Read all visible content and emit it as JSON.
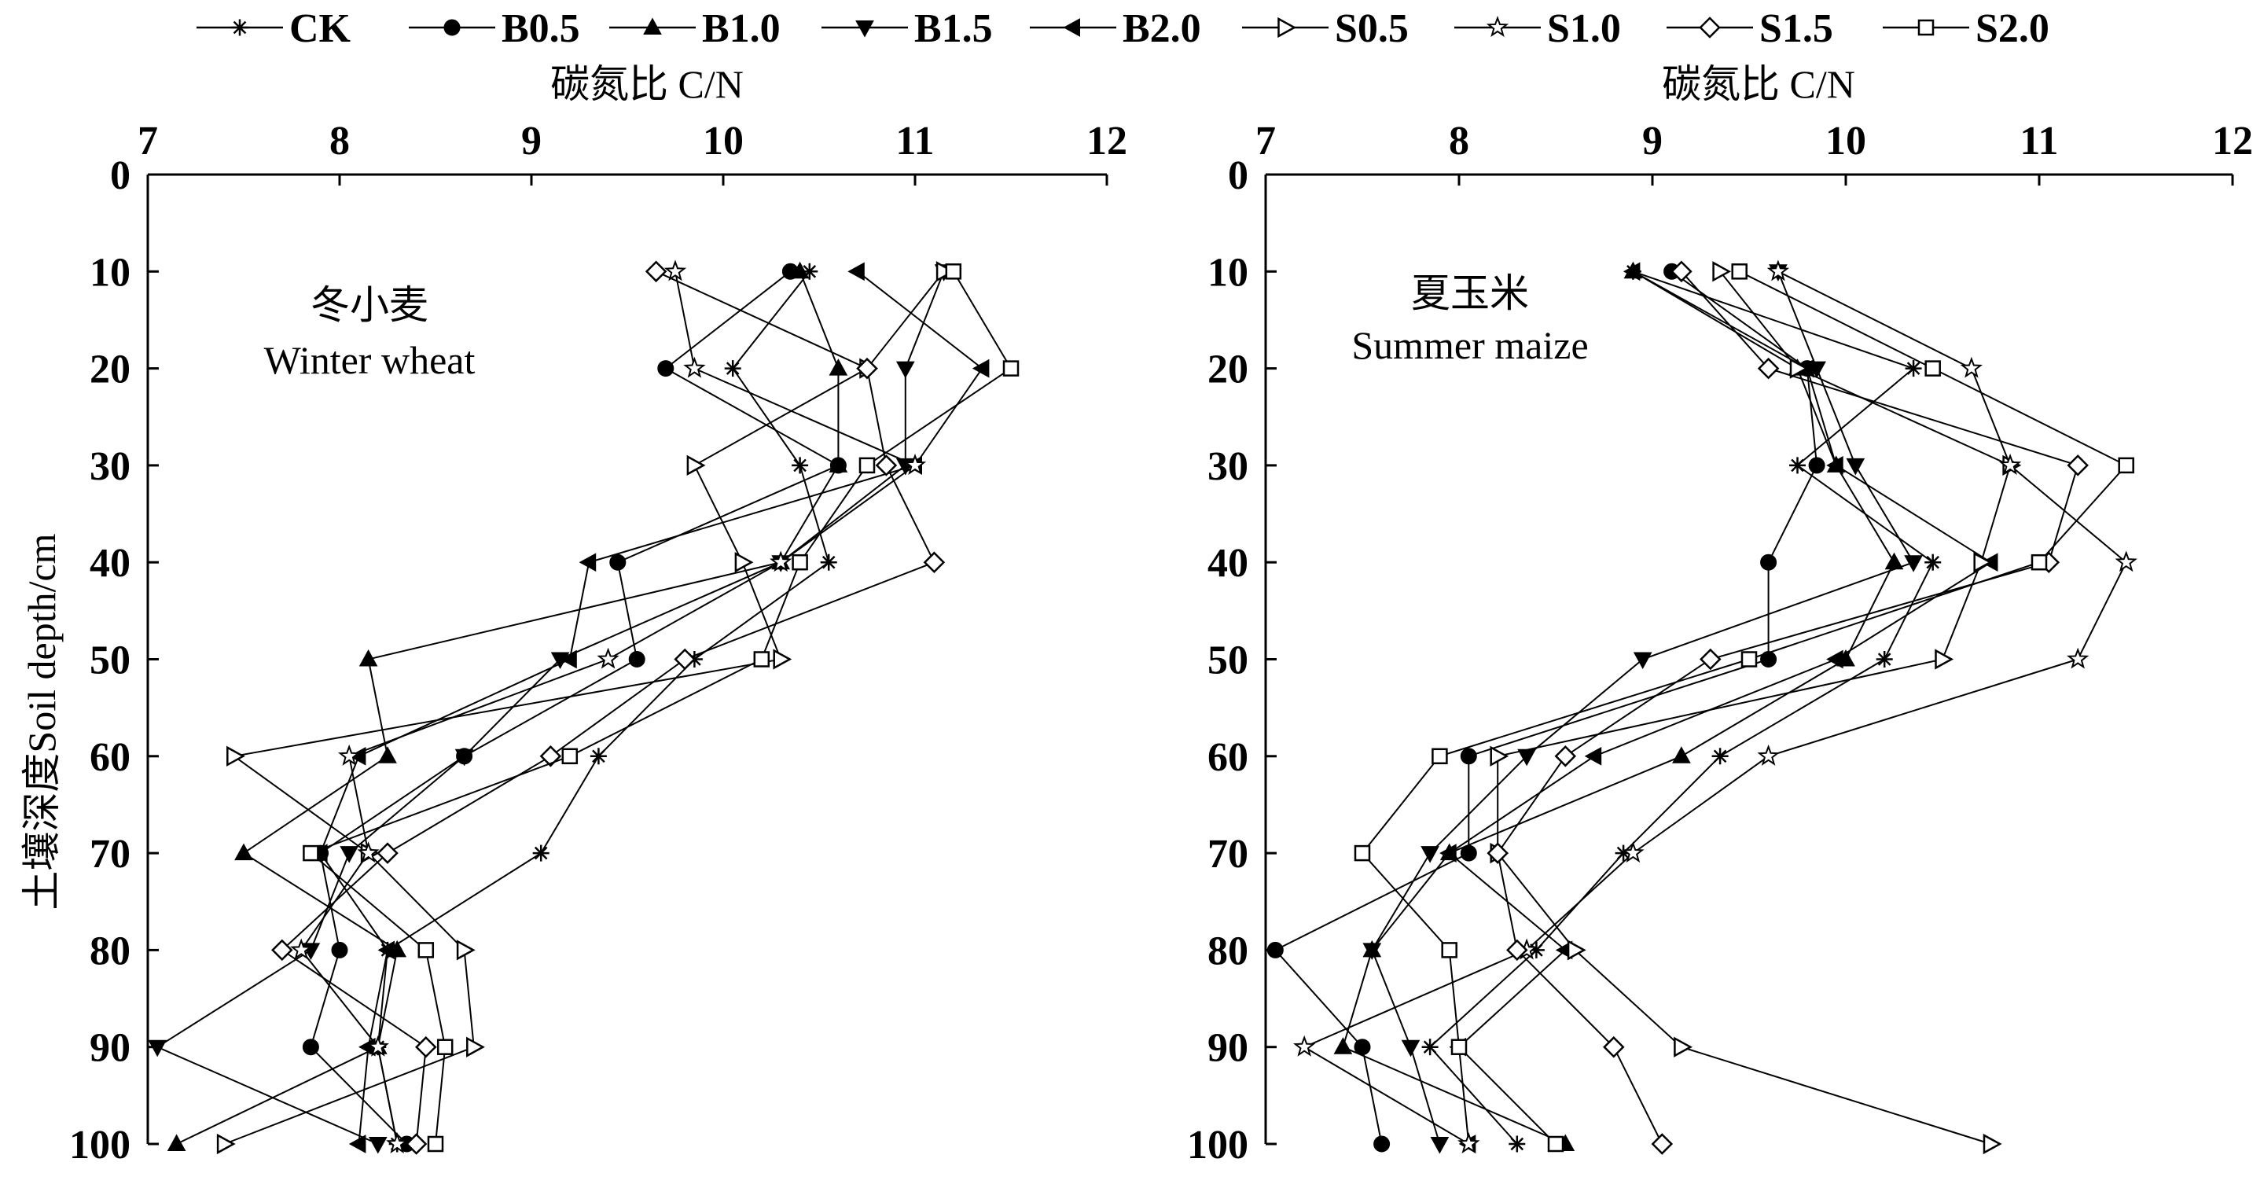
{
  "legend": {
    "position": "top",
    "series_names": [
      "CK",
      "B0.5",
      "B1.0",
      "B1.5",
      "B2.0",
      "S0.5",
      "S1.0",
      "S1.5",
      "S2.0"
    ]
  },
  "chart_data": [
    {
      "type": "line",
      "panel": "left",
      "annotation_cn": "冬小麦",
      "annotation_en": "Winter wheat",
      "xlabel": "碳氮比 C/N",
      "ylabel": "土壤深度Soil depth/cm",
      "xaxis_position": "top",
      "y_inverted": true,
      "xlim": [
        7,
        12
      ],
      "ylim": [
        0,
        100
      ],
      "xticks": [
        7,
        8,
        9,
        10,
        11,
        12
      ],
      "yticks": [
        0,
        10,
        20,
        30,
        40,
        50,
        60,
        70,
        80,
        90,
        100
      ],
      "depths": [
        10,
        20,
        30,
        40,
        50,
        60,
        70,
        80,
        90,
        100
      ],
      "series": [
        {
          "name": "CK",
          "marker": "asterisk",
          "values": [
            10.45,
            10.05,
            10.4,
            10.55,
            9.85,
            9.35,
            9.05,
            8.25,
            8.2,
            8.3
          ]
        },
        {
          "name": "B0.5",
          "marker": "circle",
          "values": [
            10.35,
            9.7,
            10.6,
            9.45,
            9.55,
            8.65,
            7.9,
            8.0,
            7.85,
            8.35
          ]
        },
        {
          "name": "B1.0",
          "marker": "triangle-up",
          "values": [
            10.4,
            10.6,
            10.6,
            10.3,
            8.15,
            8.25,
            7.5,
            8.3,
            8.2,
            7.15
          ]
        },
        {
          "name": "B1.5",
          "marker": "triangle-down",
          "values": [
            11.15,
            10.95,
            10.95,
            10.3,
            9.15,
            8.65,
            8.05,
            7.85,
            7.05,
            8.2
          ]
        },
        {
          "name": "B2.0",
          "marker": "triangle-left",
          "values": [
            10.7,
            11.35,
            11.0,
            9.3,
            9.2,
            8.1,
            7.9,
            8.25,
            8.15,
            8.1
          ]
        },
        {
          "name": "S0.5",
          "marker": "triangle-right",
          "values": [
            11.15,
            10.75,
            9.85,
            10.1,
            10.3,
            7.45,
            8.15,
            8.65,
            8.7,
            7.4
          ]
        },
        {
          "name": "S1.0",
          "marker": "star",
          "values": [
            9.75,
            9.85,
            11.0,
            10.3,
            9.4,
            8.05,
            8.15,
            7.8,
            8.2,
            8.3
          ]
        },
        {
          "name": "S1.5",
          "marker": "diamond",
          "values": [
            9.65,
            10.75,
            10.85,
            11.1,
            9.8,
            9.1,
            8.25,
            7.7,
            8.45,
            8.4
          ]
        },
        {
          "name": "S2.0",
          "marker": "square",
          "values": [
            11.2,
            11.5,
            10.75,
            10.4,
            10.2,
            9.2,
            7.85,
            8.45,
            8.55,
            8.5
          ]
        }
      ]
    },
    {
      "type": "line",
      "panel": "right",
      "annotation_cn": "夏玉米",
      "annotation_en": "Summer maize",
      "xlabel": "碳氮比 C/N",
      "ylabel": "",
      "xaxis_position": "top",
      "y_inverted": true,
      "xlim": [
        7,
        12
      ],
      "ylim": [
        0,
        100
      ],
      "xticks": [
        7,
        8,
        9,
        10,
        11,
        12
      ],
      "yticks": [
        0,
        10,
        20,
        30,
        40,
        50,
        60,
        70,
        80,
        90,
        100
      ],
      "depths": [
        10,
        20,
        30,
        40,
        50,
        60,
        70,
        80,
        90,
        100
      ],
      "series": [
        {
          "name": "CK",
          "marker": "asterisk",
          "values": [
            8.9,
            10.35,
            9.75,
            10.45,
            10.2,
            9.35,
            8.85,
            8.4,
            7.85,
            8.3
          ]
        },
        {
          "name": "B0.5",
          "marker": "circle",
          "values": [
            9.1,
            9.8,
            9.85,
            9.6,
            9.6,
            8.05,
            8.05,
            7.05,
            7.5,
            7.6
          ]
        },
        {
          "name": "B1.0",
          "marker": "triangle-up",
          "values": [
            8.9,
            9.75,
            9.95,
            10.25,
            10.0,
            9.15,
            7.95,
            7.55,
            7.4,
            8.55
          ]
        },
        {
          "name": "B1.5",
          "marker": "triangle-down",
          "values": [
            9.65,
            9.85,
            10.05,
            10.35,
            8.95,
            8.35,
            7.85,
            7.55,
            7.75,
            7.9
          ]
        },
        {
          "name": "B2.0",
          "marker": "triangle-left",
          "values": [
            8.9,
            9.8,
            9.95,
            10.75,
            9.95,
            8.7,
            7.95,
            8.55,
            8.0,
            8.05
          ]
        },
        {
          "name": "S0.5",
          "marker": "triangle-right",
          "values": [
            9.35,
            9.75,
            10.85,
            10.7,
            10.5,
            8.2,
            8.2,
            8.6,
            9.15,
            10.75
          ]
        },
        {
          "name": "S1.0",
          "marker": "star",
          "values": [
            9.65,
            10.65,
            10.85,
            11.45,
            11.2,
            9.6,
            8.9,
            8.35,
            7.2,
            8.05
          ]
        },
        {
          "name": "S1.5",
          "marker": "diamond",
          "values": [
            9.15,
            9.6,
            11.2,
            11.05,
            9.3,
            8.55,
            8.2,
            8.3,
            8.8,
            9.05
          ]
        },
        {
          "name": "S2.0",
          "marker": "square",
          "values": [
            9.45,
            10.45,
            11.45,
            11.0,
            9.5,
            7.9,
            7.5,
            7.95,
            8.0,
            8.5
          ]
        }
      ]
    }
  ]
}
